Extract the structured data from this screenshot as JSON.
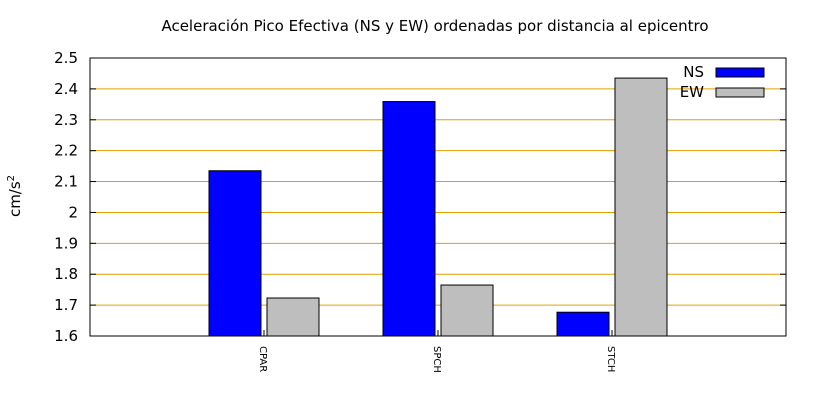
{
  "chart_data": {
    "type": "bar",
    "title": "Aceleración Pico Efectiva (NS y EW) ordenadas por distancia al epicentro",
    "ylabel": "cm/s",
    "ylabel_sup": "2",
    "xlabel": "",
    "categories": [
      "CPAR",
      "SPCH",
      "STCH"
    ],
    "series": [
      {
        "name": "NS",
        "color": "#0000ff",
        "values": [
          2.135,
          2.359,
          1.677
        ]
      },
      {
        "name": "EW",
        "color": "#bebebe",
        "values": [
          1.723,
          1.765,
          2.435
        ]
      }
    ],
    "ylim": [
      1.6,
      2.5
    ],
    "yticks": [
      "1.6",
      "1.7",
      "1.8",
      "1.9",
      "2",
      "2.1",
      "2.2",
      "2.3",
      "2.4",
      "2.5"
    ],
    "ytick_values": [
      1.6,
      1.7,
      1.8,
      1.9,
      2.0,
      2.1,
      2.2,
      2.3,
      2.4,
      2.5
    ],
    "grid": true,
    "grid_color": "#e0a000",
    "legend_position": "top-right"
  }
}
